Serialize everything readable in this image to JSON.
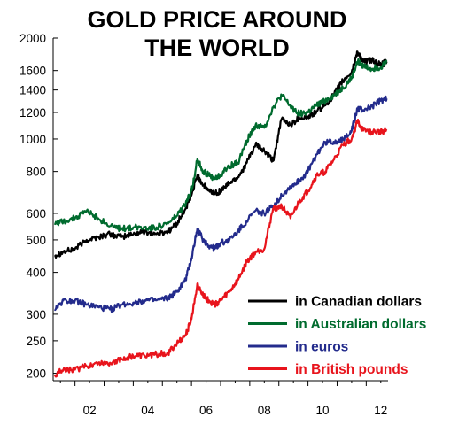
{
  "chart_data": {
    "type": "line",
    "title_line1": "GOLD PRICE AROUND",
    "title_line2": "THE WORLD",
    "xlabel": "",
    "ylabel": "",
    "y_scale": "log",
    "ylim": [
      190,
      2000
    ],
    "xlim": [
      2001.25,
      2012.75
    ],
    "grid": false,
    "legend_position": "bottom-right",
    "y_ticks": [
      200,
      250,
      300,
      400,
      500,
      600,
      800,
      1000,
      1200,
      1400,
      1600,
      2000
    ],
    "x_ticks": [
      2002,
      2004,
      2006,
      2008,
      2010,
      2012
    ],
    "x_tick_labels": [
      "02",
      "04",
      "06",
      "08",
      "10",
      "12"
    ],
    "series": [
      {
        "name": "in Canadian dollars",
        "color": "#000000",
        "x": [
          2001.3,
          2001.6,
          2002.0,
          2002.4,
          2002.8,
          2003.2,
          2003.6,
          2004.0,
          2004.4,
          2004.8,
          2005.2,
          2005.5,
          2005.8,
          2006.0,
          2006.2,
          2006.4,
          2006.6,
          2006.8,
          2007.0,
          2007.3,
          2007.6,
          2007.9,
          2008.2,
          2008.5,
          2008.8,
          2009.1,
          2009.4,
          2009.7,
          2010.0,
          2010.3,
          2010.6,
          2010.9,
          2011.2,
          2011.5,
          2011.7,
          2011.9,
          2012.2,
          2012.5,
          2012.7
        ],
        "values": [
          450,
          460,
          470,
          500,
          510,
          520,
          510,
          520,
          530,
          520,
          530,
          560,
          620,
          680,
          780,
          730,
          700,
          690,
          700,
          740,
          770,
          850,
          960,
          920,
          860,
          1150,
          1100,
          1160,
          1160,
          1210,
          1260,
          1360,
          1490,
          1580,
          1820,
          1700,
          1720,
          1660,
          1700
        ]
      },
      {
        "name": "in Australian dollars",
        "color": "#006b2e",
        "x": [
          2001.3,
          2001.6,
          2002.0,
          2002.4,
          2002.8,
          2003.2,
          2003.6,
          2004.0,
          2004.4,
          2004.8,
          2005.2,
          2005.5,
          2005.8,
          2006.0,
          2006.2,
          2006.4,
          2006.6,
          2006.8,
          2007.0,
          2007.3,
          2007.6,
          2007.9,
          2008.2,
          2008.5,
          2008.8,
          2009.1,
          2009.4,
          2009.7,
          2010.0,
          2010.3,
          2010.6,
          2010.9,
          2011.2,
          2011.5,
          2011.7,
          2011.9,
          2012.2,
          2012.5,
          2012.7
        ],
        "values": [
          560,
          570,
          580,
          610,
          580,
          550,
          540,
          545,
          545,
          545,
          560,
          590,
          640,
          700,
          870,
          800,
          780,
          760,
          780,
          830,
          850,
          990,
          1100,
          1080,
          1240,
          1350,
          1250,
          1190,
          1200,
          1260,
          1300,
          1350,
          1420,
          1520,
          1700,
          1650,
          1620,
          1640,
          1700
        ]
      },
      {
        "name": "in euros",
        "color": "#232b8c",
        "x": [
          2001.3,
          2001.6,
          2002.0,
          2002.4,
          2002.8,
          2003.2,
          2003.6,
          2004.0,
          2004.4,
          2004.8,
          2005.2,
          2005.5,
          2005.8,
          2006.0,
          2006.2,
          2006.4,
          2006.6,
          2006.8,
          2007.0,
          2007.3,
          2007.6,
          2007.9,
          2008.2,
          2008.5,
          2008.8,
          2009.1,
          2009.4,
          2009.7,
          2010.0,
          2010.3,
          2010.6,
          2010.9,
          2011.2,
          2011.5,
          2011.7,
          2011.9,
          2012.2,
          2012.5,
          2012.7
        ],
        "values": [
          310,
          330,
          330,
          320,
          315,
          310,
          320,
          325,
          330,
          330,
          335,
          350,
          380,
          440,
          540,
          500,
          480,
          470,
          490,
          500,
          530,
          570,
          610,
          600,
          630,
          680,
          720,
          750,
          800,
          900,
          980,
          980,
          1000,
          1060,
          1230,
          1220,
          1250,
          1300,
          1320
        ]
      },
      {
        "name": "in British pounds",
        "color": "#e8141c",
        "x": [
          2001.3,
          2001.6,
          2002.0,
          2002.4,
          2002.8,
          2003.2,
          2003.6,
          2004.0,
          2004.4,
          2004.8,
          2005.2,
          2005.5,
          2005.8,
          2006.0,
          2006.2,
          2006.4,
          2006.6,
          2006.8,
          2007.0,
          2007.3,
          2007.6,
          2007.9,
          2008.2,
          2008.5,
          2008.8,
          2009.1,
          2009.4,
          2009.7,
          2010.0,
          2010.3,
          2010.6,
          2010.9,
          2011.2,
          2011.5,
          2011.7,
          2011.9,
          2012.2,
          2012.5,
          2012.7
        ],
        "values": [
          198,
          205,
          205,
          210,
          215,
          215,
          220,
          225,
          225,
          228,
          230,
          245,
          260,
          290,
          370,
          340,
          330,
          320,
          330,
          350,
          380,
          430,
          460,
          470,
          620,
          630,
          580,
          650,
          700,
          780,
          800,
          870,
          960,
          1000,
          1130,
          1060,
          1050,
          1050,
          1060
        ]
      }
    ]
  }
}
